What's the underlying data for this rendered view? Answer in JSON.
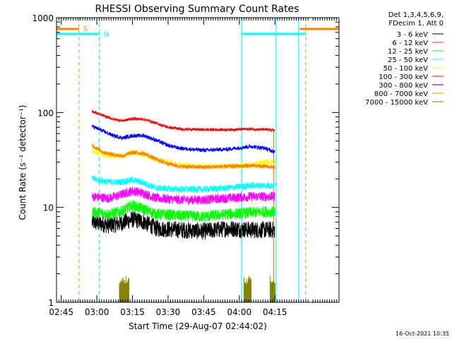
{
  "chart_data": {
    "type": "line",
    "title": "RHESSI Observing Summary Count Rates",
    "xlabel": "Start Time (29-Aug-07 02:44:02)",
    "ylabel": "Count Rate (s⁻¹ detector⁻¹)",
    "yscale": "log",
    "ylim": [
      1,
      1000
    ],
    "xlim_minutes": [
      -2,
      117
    ],
    "x_ticks": [
      {
        "minutes": 0,
        "label": "02:45"
      },
      {
        "minutes": 15,
        "label": "03:00"
      },
      {
        "minutes": 30,
        "label": "03:15"
      },
      {
        "minutes": 45,
        "label": "03:30"
      },
      {
        "minutes": 60,
        "label": "03:45"
      },
      {
        "minutes": 75,
        "label": "04:00"
      },
      {
        "minutes": 90,
        "label": "04:15"
      }
    ],
    "y_ticks": [
      {
        "value": 1,
        "label": "1"
      },
      {
        "value": 10,
        "label": "10"
      },
      {
        "value": 100,
        "label": "100"
      },
      {
        "value": 1000,
        "label": "1000"
      }
    ],
    "legend_header": [
      "Det 1,3,4,5,6,9,",
      "FDecim 1, Att 0"
    ],
    "legend_position": "top-right",
    "series": [
      {
        "name": "3 - 6 keV",
        "color": "#000000",
        "points": [
          [
            13,
            7.0
          ],
          [
            20,
            6.5
          ],
          [
            25,
            6.8
          ],
          [
            30,
            7.5
          ],
          [
            35,
            7.0
          ],
          [
            40,
            6.0
          ],
          [
            50,
            5.8
          ],
          [
            60,
            5.6
          ],
          [
            70,
            6.0
          ],
          [
            80,
            5.8
          ],
          [
            86,
            5.8
          ],
          [
            90,
            5.8
          ]
        ]
      },
      {
        "name": "6 - 12 keV",
        "color": "#ff00ff",
        "points": [
          [
            13,
            13.0
          ],
          [
            20,
            12.5
          ],
          [
            25,
            13.5
          ],
          [
            30,
            15.0
          ],
          [
            35,
            14.0
          ],
          [
            40,
            12.5
          ],
          [
            50,
            12.0
          ],
          [
            60,
            12.0
          ],
          [
            70,
            12.5
          ],
          [
            80,
            13.0
          ],
          [
            86,
            13.0
          ],
          [
            90,
            13.0
          ]
        ]
      },
      {
        "name": "12 - 25 keV",
        "color": "#00ff00",
        "points": [
          [
            13,
            9.0
          ],
          [
            20,
            8.5
          ],
          [
            25,
            9.0
          ],
          [
            30,
            10.5
          ],
          [
            35,
            9.5
          ],
          [
            40,
            8.5
          ],
          [
            50,
            8.2
          ],
          [
            60,
            8.0
          ],
          [
            70,
            8.5
          ],
          [
            80,
            8.8
          ],
          [
            86,
            9.0
          ],
          [
            90,
            9.0
          ]
        ]
      },
      {
        "name": "25 - 50 keV",
        "color": "#00ffff",
        "points": [
          [
            13,
            20.0
          ],
          [
            20,
            18.5
          ],
          [
            25,
            18.5
          ],
          [
            30,
            19.5
          ],
          [
            35,
            18.0
          ],
          [
            40,
            16.0
          ],
          [
            50,
            15.5
          ],
          [
            60,
            15.5
          ],
          [
            70,
            16.0
          ],
          [
            80,
            17.0
          ],
          [
            86,
            17.0
          ],
          [
            90,
            17.0
          ]
        ]
      },
      {
        "name": "50 - 100 keV",
        "color": "#ffff00",
        "points": [
          [
            13,
            40.0
          ],
          [
            20,
            35.0
          ],
          [
            25,
            34.0
          ],
          [
            30,
            38.0
          ],
          [
            35,
            36.0
          ],
          [
            40,
            32.0
          ],
          [
            50,
            28.0
          ],
          [
            60,
            27.0
          ],
          [
            70,
            27.0
          ],
          [
            80,
            28.0
          ],
          [
            86,
            30.0
          ],
          [
            90,
            30.0
          ]
        ]
      },
      {
        "name": "100 - 300 keV",
        "color": "#ff0000",
        "points": [
          [
            13,
            103.0
          ],
          [
            18,
            92.0
          ],
          [
            22,
            85.0
          ],
          [
            26,
            82.0
          ],
          [
            30,
            86.0
          ],
          [
            35,
            85.0
          ],
          [
            40,
            77.0
          ],
          [
            45,
            70.0
          ],
          [
            50,
            67.0
          ],
          [
            60,
            66.0
          ],
          [
            70,
            66.0
          ],
          [
            80,
            67.0
          ],
          [
            86,
            66.0
          ],
          [
            90,
            65.0
          ]
        ]
      },
      {
        "name": "300 - 800 keV",
        "color": "#0000ff",
        "points": [
          [
            13,
            72.0
          ],
          [
            18,
            63.0
          ],
          [
            22,
            57.0
          ],
          [
            26,
            54.0
          ],
          [
            30,
            57.0
          ],
          [
            35,
            57.0
          ],
          [
            40,
            51.0
          ],
          [
            45,
            45.0
          ],
          [
            50,
            42.0
          ],
          [
            60,
            40.0
          ],
          [
            70,
            41.0
          ],
          [
            80,
            44.0
          ],
          [
            86,
            42.0
          ],
          [
            90,
            38.0
          ]
        ]
      },
      {
        "name": "800 - 7000 keV",
        "color": "#ff8000",
        "points": [
          [
            13,
            45.0
          ],
          [
            18,
            38.0
          ],
          [
            22,
            36.0
          ],
          [
            26,
            35.0
          ],
          [
            30,
            38.0
          ],
          [
            35,
            37.0
          ],
          [
            40,
            32.0
          ],
          [
            45,
            29.0
          ],
          [
            50,
            27.0
          ],
          [
            60,
            26.5
          ],
          [
            70,
            27.0
          ],
          [
            80,
            27.5
          ],
          [
            86,
            27.0
          ],
          [
            90,
            26.5
          ]
        ]
      },
      {
        "name": "7000 - 15000 keV",
        "color": "#808000",
        "points": []
      }
    ],
    "annotations": [
      {
        "label": "S",
        "color": "#ff8000"
      },
      {
        "label": "N",
        "color": "#00ffff"
      }
    ],
    "timestamp": "16-Oct-2021 10:35"
  }
}
